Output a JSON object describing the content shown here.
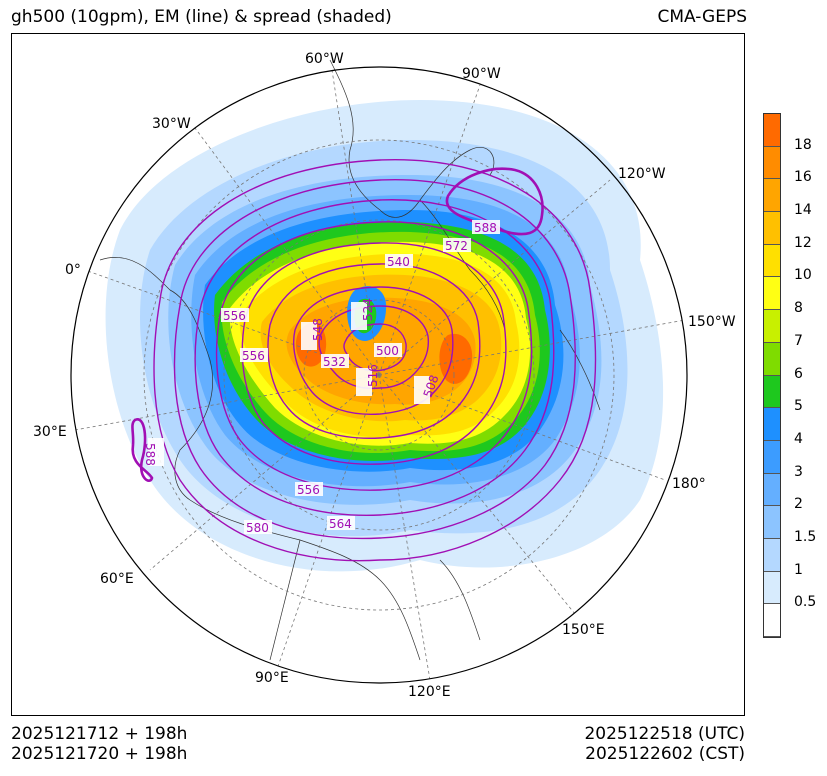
{
  "header": {
    "title_left": "gh500 (10gpm), EM (line) & spread (shaded)",
    "title_right": "CMA-GEPS"
  },
  "footer": {
    "init_utc": "2025121712 + 198h",
    "init_cst": "2025121720 + 198h",
    "valid_utc": "2025122518 (UTC)",
    "valid_cst": "2025122602 (CST)"
  },
  "map": {
    "projection": "north-polar-stereographic",
    "longitude_labels": [
      "60°W",
      "90°W",
      "30°W",
      "120°W",
      "0°",
      "150°W",
      "30°E",
      "180°",
      "60°E",
      "150°E",
      "90°E",
      "120°E"
    ],
    "contour_labels": [
      "588",
      "572",
      "540",
      "556",
      "548",
      "524",
      "556",
      "532",
      "500",
      "516",
      "508",
      "588",
      "556",
      "564",
      "580"
    ],
    "colors": {
      "contour": "#a10fb4",
      "graticule": "#777777",
      "coast": "#333333"
    }
  },
  "colorbar": {
    "labels": [
      "18",
      "16",
      "14",
      "12",
      "10",
      "8",
      "7",
      "6",
      "5",
      "4",
      "3",
      "2",
      "1.5",
      "1",
      "0.5"
    ],
    "colors": [
      "#ff6a00",
      "#ff8c00",
      "#ffa500",
      "#ffc000",
      "#ffe000",
      "#ffff14",
      "#c8f000",
      "#7fdc00",
      "#1ec81e",
      "#1e90ff",
      "#3c9cff",
      "#64afff",
      "#8cc4ff",
      "#b4d8ff",
      "#d7ebfd",
      "#ffffff"
    ]
  }
}
